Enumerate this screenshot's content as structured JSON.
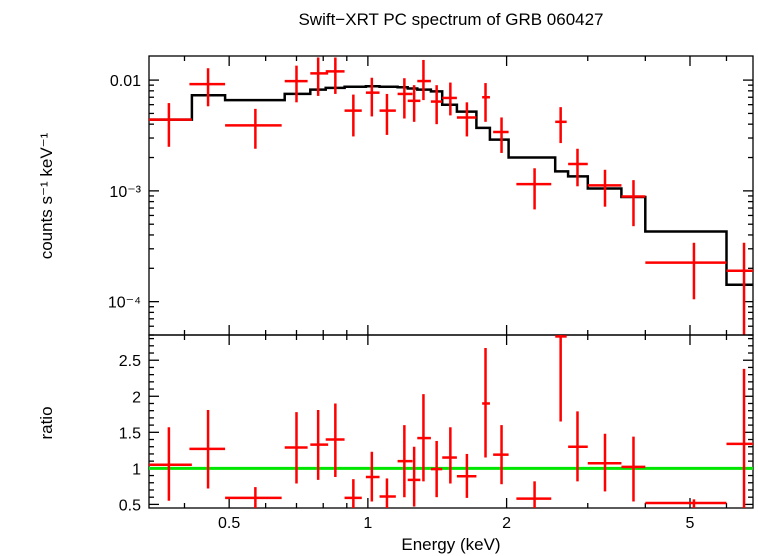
{
  "chart_data": {
    "title": "Swift−XRT PC spectrum of GRB 060427",
    "xlabel": "Energy (keV)",
    "x_scale": "log",
    "xlim": [
      0.335,
      6.85
    ],
    "x_ticks": [
      {
        "value": 0.5,
        "label": "0.5"
      },
      {
        "value": 1,
        "label": "1"
      },
      {
        "value": 2,
        "label": "2"
      },
      {
        "value": 5,
        "label": "5"
      }
    ],
    "colors": {
      "data": "#ff0000",
      "model": "#000000",
      "unity": "#00e600",
      "axes": "#000000"
    },
    "panels": [
      {
        "id": "spectrum",
        "type": "scatter",
        "ylabel": "counts s⁻¹ keV⁻¹",
        "y_scale": "log",
        "ylim": [
          5e-05,
          0.0165
        ],
        "y_ticks": [
          {
            "value": 0.01,
            "label": "0.01"
          },
          {
            "value": 0.001,
            "label": "10⁻³"
          },
          {
            "value": 0.0001,
            "label": "10⁻⁴"
          }
        ],
        "data_series": {
          "name": "data",
          "points": [
            {
              "x": 0.37,
              "xlo": 0.335,
              "xhi": 0.415,
              "y": 0.0044,
              "ylo": 0.0025,
              "yhi": 0.0062
            },
            {
              "x": 0.45,
              "xlo": 0.41,
              "xhi": 0.49,
              "y": 0.0092,
              "ylo": 0.0058,
              "yhi": 0.0128
            },
            {
              "x": 0.57,
              "xlo": 0.49,
              "xhi": 0.65,
              "y": 0.0039,
              "ylo": 0.0024,
              "yhi": 0.0055
            },
            {
              "x": 0.7,
              "xlo": 0.66,
              "xhi": 0.74,
              "y": 0.0098,
              "ylo": 0.0063,
              "yhi": 0.0135
            },
            {
              "x": 0.78,
              "xlo": 0.75,
              "xhi": 0.82,
              "y": 0.0115,
              "ylo": 0.0072,
              "yhi": 0.016
            },
            {
              "x": 0.85,
              "xlo": 0.81,
              "xhi": 0.89,
              "y": 0.012,
              "ylo": 0.0075,
              "yhi": 0.016
            },
            {
              "x": 0.93,
              "xlo": 0.89,
              "xhi": 0.97,
              "y": 0.0053,
              "ylo": 0.0031,
              "yhi": 0.0074
            },
            {
              "x": 1.02,
              "xlo": 0.99,
              "xhi": 1.06,
              "y": 0.0077,
              "ylo": 0.0047,
              "yhi": 0.0105
            },
            {
              "x": 1.1,
              "xlo": 1.06,
              "xhi": 1.15,
              "y": 0.0053,
              "ylo": 0.0032,
              "yhi": 0.0075
            },
            {
              "x": 1.2,
              "xlo": 1.16,
              "xhi": 1.25,
              "y": 0.0075,
              "ylo": 0.0045,
              "yhi": 0.0104
            },
            {
              "x": 1.26,
              "xlo": 1.22,
              "xhi": 1.3,
              "y": 0.0065,
              "ylo": 0.0042,
              "yhi": 0.009
            },
            {
              "x": 1.32,
              "xlo": 1.28,
              "xhi": 1.37,
              "y": 0.0098,
              "ylo": 0.0066,
              "yhi": 0.0152
            },
            {
              "x": 1.41,
              "xlo": 1.37,
              "xhi": 1.45,
              "y": 0.0064,
              "ylo": 0.004,
              "yhi": 0.009
            },
            {
              "x": 1.51,
              "xlo": 1.45,
              "xhi": 1.56,
              "y": 0.0069,
              "ylo": 0.0048,
              "yhi": 0.0095
            },
            {
              "x": 1.64,
              "xlo": 1.56,
              "xhi": 1.72,
              "y": 0.0046,
              "ylo": 0.0031,
              "yhi": 0.0063
            },
            {
              "x": 1.8,
              "xlo": 1.77,
              "xhi": 1.84,
              "y": 0.007,
              "ylo": 0.0042,
              "yhi": 0.0094
            },
            {
              "x": 1.95,
              "xlo": 1.87,
              "xhi": 2.02,
              "y": 0.0034,
              "ylo": 0.0022,
              "yhi": 0.0046
            },
            {
              "x": 2.3,
              "xlo": 2.1,
              "xhi": 2.5,
              "y": 0.00115,
              "ylo": 0.00068,
              "yhi": 0.0016
            },
            {
              "x": 2.62,
              "xlo": 2.55,
              "xhi": 2.7,
              "y": 0.0042,
              "ylo": 0.0027,
              "yhi": 0.0057
            },
            {
              "x": 2.85,
              "xlo": 2.72,
              "xhi": 3.0,
              "y": 0.00175,
              "ylo": 0.0011,
              "yhi": 0.0024
            },
            {
              "x": 3.27,
              "xlo": 3.0,
              "xhi": 3.55,
              "y": 0.00112,
              "ylo": 0.00072,
              "yhi": 0.00155
            },
            {
              "x": 3.77,
              "xlo": 3.55,
              "xhi": 4.0,
              "y": 0.00089,
              "ylo": 0.00048,
              "yhi": 0.00125
            },
            {
              "x": 5.1,
              "xlo": 4.0,
              "xhi": 6.0,
              "y": 0.000225,
              "ylo": 0.000105,
              "yhi": 0.00034
            },
            {
              "x": 6.55,
              "xlo": 6.0,
              "xhi": 6.85,
              "y": 0.00019,
              "ylo": 5e-05,
              "yhi": 0.00034
            }
          ]
        },
        "model_series": {
          "name": "model",
          "steps": [
            {
              "x0": 0.335,
              "x1": 0.415,
              "y": 0.0044
            },
            {
              "x0": 0.415,
              "x1": 0.49,
              "y": 0.0073
            },
            {
              "x0": 0.49,
              "x1": 0.66,
              "y": 0.0066
            },
            {
              "x0": 0.66,
              "x1": 0.75,
              "y": 0.0075
            },
            {
              "x0": 0.75,
              "x1": 0.81,
              "y": 0.0082
            },
            {
              "x0": 0.81,
              "x1": 0.89,
              "y": 0.0085
            },
            {
              "x0": 0.89,
              "x1": 0.99,
              "y": 0.0087
            },
            {
              "x0": 0.99,
              "x1": 1.06,
              "y": 0.0088
            },
            {
              "x0": 1.06,
              "x1": 1.16,
              "y": 0.0087
            },
            {
              "x0": 1.16,
              "x1": 1.22,
              "y": 0.0086
            },
            {
              "x0": 1.22,
              "x1": 1.28,
              "y": 0.0084
            },
            {
              "x0": 1.28,
              "x1": 1.37,
              "y": 0.0082
            },
            {
              "x0": 1.37,
              "x1": 1.45,
              "y": 0.0079
            },
            {
              "x0": 1.45,
              "x1": 1.56,
              "y": 0.006
            },
            {
              "x0": 1.56,
              "x1": 1.72,
              "y": 0.0052
            },
            {
              "x0": 1.72,
              "x1": 1.84,
              "y": 0.0037
            },
            {
              "x0": 1.84,
              "x1": 2.02,
              "y": 0.0029
            },
            {
              "x0": 2.02,
              "x1": 2.55,
              "y": 0.002
            },
            {
              "x0": 2.55,
              "x1": 2.72,
              "y": 0.0015
            },
            {
              "x0": 2.72,
              "x1": 3.0,
              "y": 0.00135
            },
            {
              "x0": 3.0,
              "x1": 3.55,
              "y": 0.00105
            },
            {
              "x0": 3.55,
              "x1": 4.0,
              "y": 0.00088
            },
            {
              "x0": 4.0,
              "x1": 6.0,
              "y": 0.00043
            },
            {
              "x0": 6.0,
              "x1": 6.85,
              "y": 0.000142
            }
          ]
        }
      },
      {
        "id": "ratio",
        "type": "scatter",
        "ylabel": "ratio",
        "y_scale": "linear",
        "ylim": [
          0.45,
          2.85
        ],
        "y_ticks": [
          {
            "value": 0.5,
            "label": "0.5"
          },
          {
            "value": 1,
            "label": "1"
          },
          {
            "value": 1.5,
            "label": "1.5"
          },
          {
            "value": 2,
            "label": "2"
          },
          {
            "value": 2.5,
            "label": "2.5"
          }
        ],
        "reference_line": 1,
        "data_series": {
          "name": "ratio",
          "points": [
            {
              "x": 0.37,
              "xlo": 0.335,
              "xhi": 0.415,
              "y": 1.05,
              "ylo": 0.55,
              "yhi": 1.57
            },
            {
              "x": 0.45,
              "xlo": 0.41,
              "xhi": 0.49,
              "y": 1.27,
              "ylo": 0.72,
              "yhi": 1.81
            },
            {
              "x": 0.57,
              "xlo": 0.49,
              "xhi": 0.65,
              "y": 0.59,
              "ylo": 0.45,
              "yhi": 0.74
            },
            {
              "x": 0.7,
              "xlo": 0.66,
              "xhi": 0.74,
              "y": 1.29,
              "ylo": 0.79,
              "yhi": 1.78
            },
            {
              "x": 0.78,
              "xlo": 0.75,
              "xhi": 0.82,
              "y": 1.33,
              "ylo": 0.84,
              "yhi": 1.81
            },
            {
              "x": 0.85,
              "xlo": 0.81,
              "xhi": 0.89,
              "y": 1.4,
              "ylo": 0.88,
              "yhi": 1.9
            },
            {
              "x": 0.93,
              "xlo": 0.89,
              "xhi": 0.97,
              "y": 0.59,
              "ylo": 0.45,
              "yhi": 0.85
            },
            {
              "x": 1.02,
              "xlo": 0.99,
              "xhi": 1.06,
              "y": 0.88,
              "ylo": 0.54,
              "yhi": 1.23
            },
            {
              "x": 1.1,
              "xlo": 1.06,
              "xhi": 1.15,
              "y": 0.61,
              "ylo": 0.45,
              "yhi": 0.86
            },
            {
              "x": 1.2,
              "xlo": 1.16,
              "xhi": 1.25,
              "y": 1.1,
              "ylo": 0.6,
              "yhi": 1.6
            },
            {
              "x": 1.26,
              "xlo": 1.22,
              "xhi": 1.3,
              "y": 0.84,
              "ylo": 0.47,
              "yhi": 1.3
            },
            {
              "x": 1.32,
              "xlo": 1.28,
              "xhi": 1.37,
              "y": 1.42,
              "ylo": 0.82,
              "yhi": 2.03
            },
            {
              "x": 1.41,
              "xlo": 1.37,
              "xhi": 1.45,
              "y": 0.99,
              "ylo": 0.6,
              "yhi": 1.38
            },
            {
              "x": 1.51,
              "xlo": 1.45,
              "xhi": 1.56,
              "y": 1.15,
              "ylo": 0.79,
              "yhi": 1.57
            },
            {
              "x": 1.64,
              "xlo": 1.56,
              "xhi": 1.72,
              "y": 0.89,
              "ylo": 0.59,
              "yhi": 1.2
            },
            {
              "x": 1.8,
              "xlo": 1.77,
              "xhi": 1.84,
              "y": 1.9,
              "ylo": 1.15,
              "yhi": 2.67
            },
            {
              "x": 1.95,
              "xlo": 1.87,
              "xhi": 2.02,
              "y": 1.19,
              "ylo": 0.78,
              "yhi": 1.6
            },
            {
              "x": 2.3,
              "xlo": 2.1,
              "xhi": 2.5,
              "y": 0.58,
              "ylo": 0.45,
              "yhi": 0.82
            },
            {
              "x": 2.62,
              "xlo": 2.55,
              "xhi": 2.7,
              "y": 2.83,
              "ylo": 1.65,
              "yhi": 2.85
            },
            {
              "x": 2.85,
              "xlo": 2.72,
              "xhi": 3.0,
              "y": 1.3,
              "ylo": 0.82,
              "yhi": 1.79
            },
            {
              "x": 3.27,
              "xlo": 3.0,
              "xhi": 3.55,
              "y": 1.07,
              "ylo": 0.68,
              "yhi": 1.48
            },
            {
              "x": 3.77,
              "xlo": 3.55,
              "xhi": 4.0,
              "y": 1.02,
              "ylo": 0.54,
              "yhi": 1.44
            },
            {
              "x": 5.1,
              "xlo": 4.0,
              "xhi": 6.0,
              "y": 0.52,
              "ylo": 0.45,
              "yhi": 0.57
            },
            {
              "x": 6.55,
              "xlo": 6.0,
              "xhi": 6.85,
              "y": 1.34,
              "ylo": 0.45,
              "yhi": 2.38
            }
          ]
        }
      }
    ]
  }
}
